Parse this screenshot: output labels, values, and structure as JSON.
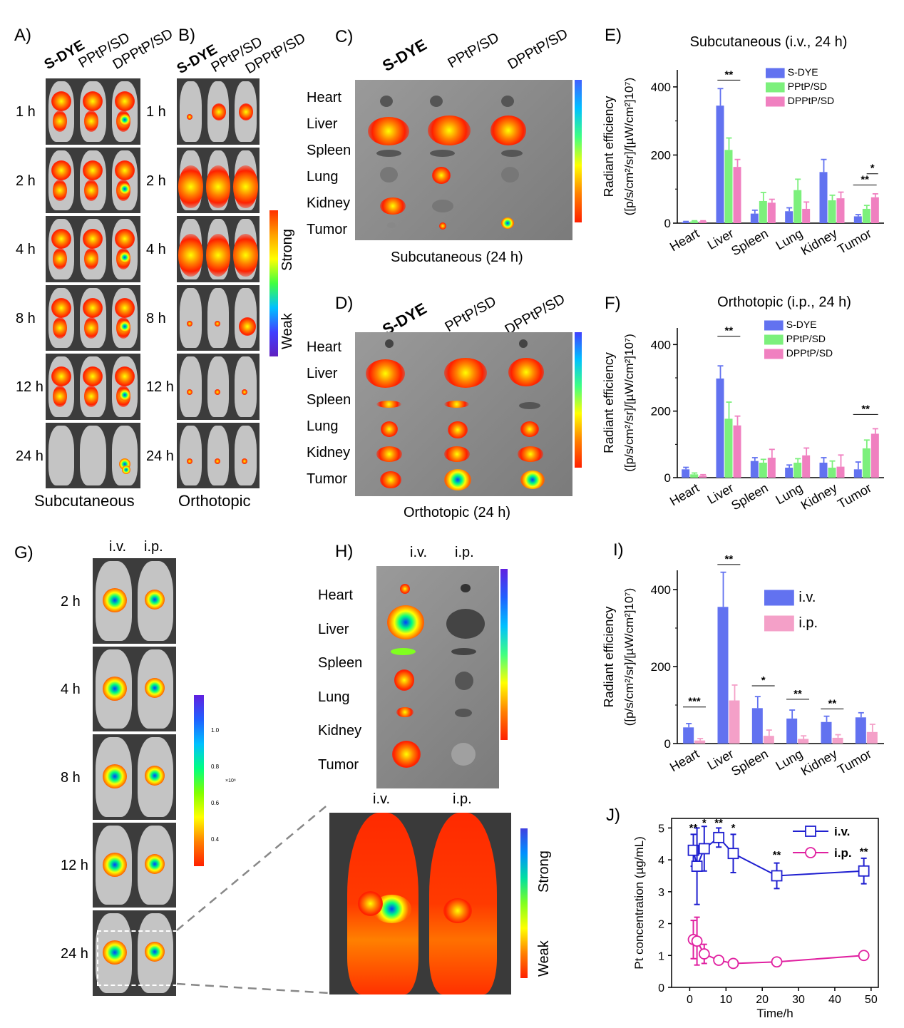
{
  "panels": {
    "A": {
      "label": "A)",
      "columns": [
        "S-DYE",
        "PPtP/SD",
        "DPPtP/SD"
      ],
      "times": [
        "1 h",
        "2 h",
        "4 h",
        "8 h",
        "12 h",
        "24 h"
      ],
      "caption": "Subcutaneous"
    },
    "B": {
      "label": "B)",
      "columns": [
        "S-DYE",
        "PPtP/SD",
        "DPPtP/SD"
      ],
      "times": [
        "1 h",
        "2 h",
        "4 h",
        "8 h",
        "12 h",
        "24 h"
      ],
      "caption": "Orthotopic",
      "scale_strong": "Strong",
      "scale_weak": "Weak"
    },
    "C": {
      "label": "C)",
      "columns": [
        "S-DYE",
        "PPtP/SD",
        "DPPtP/SD"
      ],
      "organs": [
        "Heart",
        "Liver",
        "Spleen",
        "Lung",
        "Kidney",
        "Tumor"
      ],
      "caption": "Subcutaneous (24 h)"
    },
    "D": {
      "label": "D)",
      "columns": [
        "S-DYE",
        "PPtP/SD",
        "DPPtP/SD"
      ],
      "organs": [
        "Heart",
        "Liver",
        "Spleen",
        "Lung",
        "Kidney",
        "Tumor"
      ],
      "caption": "Orthotopic (24 h)"
    },
    "E": {
      "label": "E)"
    },
    "F": {
      "label": "F)"
    },
    "G": {
      "label": "G)",
      "columns": [
        "i.v.",
        "i.p."
      ],
      "times": [
        "2 h",
        "4 h",
        "8 h",
        "12 h",
        "24 h"
      ],
      "scale_ticks": [
        "1.0",
        "0.8",
        "0.6",
        "0.4"
      ],
      "scale_exp": "×10⁸"
    },
    "H": {
      "label": "H)",
      "columns": [
        "i.v.",
        "i.p."
      ],
      "organs": [
        "Heart",
        "Liver",
        "Spleen",
        "Lung",
        "Kidney",
        "Tumor"
      ],
      "zoom_columns": [
        "i.v.",
        "i.p."
      ],
      "scale_strong": "Strong",
      "scale_weak": "Weak"
    },
    "I": {
      "label": "I)"
    },
    "J": {
      "label": "J)"
    }
  },
  "chart_data": [
    {
      "id": "E",
      "type": "bar",
      "title": "Subcutaneous (i.v., 24 h)",
      "categories": [
        "Heart",
        "Liver",
        "Spleen",
        "Lung",
        "Kidney",
        "Tumor"
      ],
      "ylabel_line1": "Radiant efficiency",
      "ylabel_line2": "([p/s/cm²/sr]/[µW/cm²]10⁷)",
      "ylim": [
        0,
        450
      ],
      "yticks": [
        0,
        200,
        400
      ],
      "legend": "top-right",
      "series": [
        {
          "name": "S-DYE",
          "color": "#6272f0",
          "values": [
            3,
            345,
            28,
            35,
            150,
            20
          ],
          "err": [
            2,
            50,
            10,
            10,
            37,
            5
          ]
        },
        {
          "name": "PPtP/SD",
          "color": "#7cf07c",
          "values": [
            5,
            215,
            65,
            97,
            67,
            42
          ],
          "err": [
            2,
            35,
            25,
            32,
            15,
            10
          ]
        },
        {
          "name": "DPPtP/SD",
          "color": "#f080c0",
          "values": [
            5,
            165,
            60,
            42,
            73,
            76
          ],
          "err": [
            2,
            22,
            10,
            20,
            18,
            10
          ]
        }
      ],
      "annotations": [
        "**",
        "**",
        "*"
      ]
    },
    {
      "id": "F",
      "type": "bar",
      "title": "Orthotopic (i.p., 24 h)",
      "categories": [
        "Heart",
        "Liver",
        "Spleen",
        "Lung",
        "Kidney",
        "Tumor"
      ],
      "ylabel_line1": "Radiant efficiency",
      "ylabel_line2": "([p/s/cm²/sr]/[µW/cm²]10⁷)",
      "ylim": [
        0,
        450
      ],
      "yticks": [
        0,
        200,
        400
      ],
      "legend": "top-right",
      "series": [
        {
          "name": "S-DYE",
          "color": "#6272f0",
          "values": [
            25,
            298,
            50,
            30,
            45,
            25
          ],
          "err": [
            6,
            38,
            10,
            8,
            15,
            22
          ]
        },
        {
          "name": "PPtP/SD",
          "color": "#7cf07c",
          "values": [
            10,
            177,
            45,
            45,
            30,
            88
          ],
          "err": [
            4,
            50,
            10,
            12,
            20,
            25
          ]
        },
        {
          "name": "DPPtP/SD",
          "color": "#f080c0",
          "values": [
            6,
            157,
            60,
            67,
            33,
            132
          ],
          "err": [
            3,
            28,
            25,
            22,
            35,
            15
          ]
        }
      ],
      "annotations": [
        "**",
        "**"
      ]
    },
    {
      "id": "I",
      "type": "bar",
      "categories": [
        "Heart",
        "Liver",
        "Spleen",
        "Lung",
        "Kidney",
        "Tumor"
      ],
      "ylabel_line1": "Radiant efficiency",
      "ylabel_line2": "([p/s/cm²/sr]/[µW/cm²]10⁷)",
      "ylim": [
        0,
        450
      ],
      "yticks": [
        0,
        200,
        400
      ],
      "legend": "top-right",
      "series": [
        {
          "name": "i.v.",
          "color": "#6272f0",
          "values": [
            42,
            355,
            92,
            65,
            56,
            68
          ],
          "err": [
            10,
            90,
            30,
            22,
            15,
            12
          ]
        },
        {
          "name": "i.p.",
          "color": "#f4a0c8",
          "values": [
            8,
            112,
            20,
            12,
            15,
            30
          ],
          "err": [
            5,
            40,
            15,
            8,
            8,
            20
          ]
        }
      ],
      "annotations": [
        "***",
        "**",
        "*",
        "**",
        "**"
      ]
    },
    {
      "id": "J",
      "type": "line",
      "xlabel": "Time/h",
      "ylabel": "Pt concentration (µg/mL)",
      "xlim": [
        -5,
        52
      ],
      "ylim": [
        0,
        5.3
      ],
      "xticks": [
        0,
        10,
        20,
        30,
        40,
        50
      ],
      "yticks": [
        0,
        1,
        2,
        3,
        4,
        5
      ],
      "legend": "top-right",
      "series": [
        {
          "name": "i.v.",
          "color": "#1f1fd0",
          "x": [
            1,
            2,
            4,
            8,
            12,
            24,
            48
          ],
          "y": [
            4.3,
            3.8,
            4.35,
            4.7,
            4.2,
            3.5,
            3.65
          ],
          "err": [
            0.5,
            1.2,
            0.7,
            0.3,
            0.6,
            0.4,
            0.4
          ]
        },
        {
          "name": "i.p.",
          "color": "#e020a0",
          "x": [
            1,
            2,
            4,
            8,
            12,
            24,
            48
          ],
          "y": [
            1.5,
            1.45,
            1.05,
            0.85,
            0.75,
            0.8,
            1.0
          ],
          "err": [
            0.6,
            0.75,
            0.3,
            0.1,
            0.1,
            0.1,
            0.1
          ]
        }
      ],
      "annotations": [
        "**",
        "*",
        "**",
        "*",
        "**",
        "**"
      ]
    }
  ]
}
